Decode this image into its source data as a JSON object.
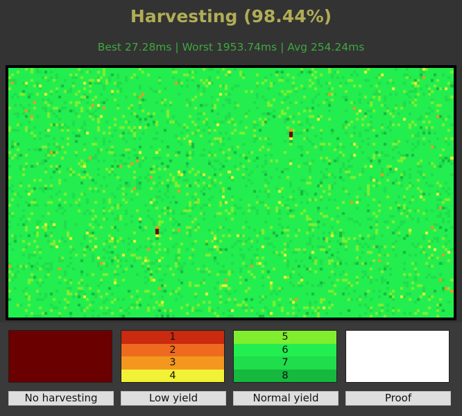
{
  "title": "Harvesting (98.44%)",
  "stats": "Best 27.28ms | Worst 1953.74ms | Avg 254.24ms",
  "colors": {
    "background": "#333333",
    "title": "#b0ad56",
    "stats": "#3fa83f",
    "no_harvesting": "#6b0000",
    "proof": "#ffffff",
    "yield_1": "#c92a10",
    "yield_2": "#ee6a1f",
    "yield_3": "#f3971e",
    "yield_4": "#f1f135",
    "yield_5": "#80ee2e",
    "yield_6": "#22ee50",
    "yield_7": "#1fdd4b",
    "yield_8": "#16b83e"
  },
  "field": {
    "grid": {
      "columns": 160,
      "rows": 90
    },
    "dominant_level": 6,
    "no_harvesting_share": 0.0156
  },
  "legend": {
    "no_harvesting": {
      "label": "No harvesting"
    },
    "low_yield": {
      "label": "Low yield",
      "levels": [
        "1",
        "2",
        "3",
        "4"
      ]
    },
    "normal_yield": {
      "label": "Normal yield",
      "levels": [
        "5",
        "6",
        "7",
        "8"
      ]
    },
    "proof": {
      "label": "Proof"
    }
  }
}
